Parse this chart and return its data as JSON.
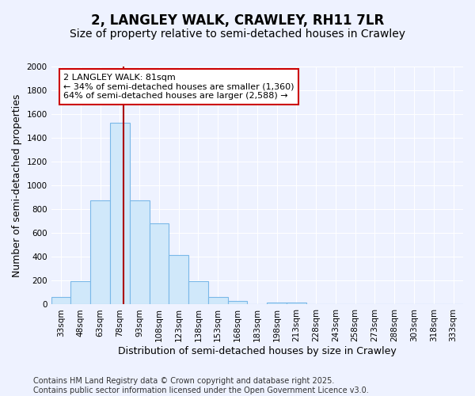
{
  "title": "2, LANGLEY WALK, CRAWLEY, RH11 7LR",
  "subtitle": "Size of property relative to semi-detached houses in Crawley",
  "xlabel": "Distribution of semi-detached houses by size in Crawley",
  "ylabel": "Number of semi-detached properties",
  "bins": [
    "33sqm",
    "48sqm",
    "63sqm",
    "78sqm",
    "93sqm",
    "108sqm",
    "123sqm",
    "138sqm",
    "153sqm",
    "168sqm",
    "183sqm",
    "198sqm",
    "213sqm",
    "228sqm",
    "243sqm",
    "258sqm",
    "273sqm",
    "288sqm",
    "303sqm",
    "318sqm",
    "333sqm"
  ],
  "values": [
    65,
    195,
    875,
    1530,
    875,
    680,
    415,
    195,
    60,
    30,
    0,
    15,
    15,
    0,
    0,
    0,
    0,
    0,
    0,
    0,
    0
  ],
  "bar_color": "#d0e8fa",
  "bar_edge_color": "#7ab8e8",
  "marker_color": "#aa0000",
  "annotation_line1": "2 LANGLEY WALK: 81sqm",
  "annotation_line2": "← 34% of semi-detached houses are smaller (1,360)",
  "annotation_line3": "64% of semi-detached houses are larger (2,588) →",
  "annotation_box_color": "#ffffff",
  "annotation_box_edge": "#cc0000",
  "ylim": [
    0,
    2000
  ],
  "yticks": [
    0,
    200,
    400,
    600,
    800,
    1000,
    1200,
    1400,
    1600,
    1800,
    2000
  ],
  "footer_line1": "Contains HM Land Registry data © Crown copyright and database right 2025.",
  "footer_line2": "Contains public sector information licensed under the Open Government Licence v3.0.",
  "bg_color": "#eef2ff",
  "grid_color": "#ffffff",
  "title_fontsize": 12,
  "subtitle_fontsize": 10,
  "axis_label_fontsize": 9,
  "tick_fontsize": 7.5,
  "annotation_fontsize": 8,
  "footer_fontsize": 7
}
